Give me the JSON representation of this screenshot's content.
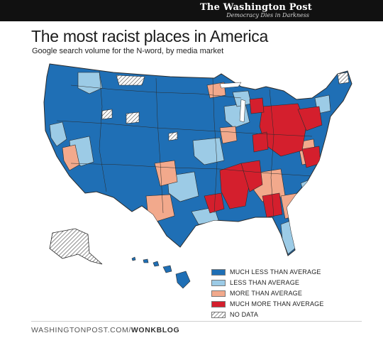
{
  "header": {
    "masthead": "The Washington Post",
    "tagline": "Democracy Dies in Darkness"
  },
  "title": "The most racist places in America",
  "subtitle": "Google search volume for the N-word, by media market",
  "colors": {
    "much_less": "#1f6fb5",
    "less": "#9ccbe6",
    "more": "#f2a98c",
    "much_more": "#d41f2d",
    "no_data": "#ffffff",
    "boundary": "#2b2b2b"
  },
  "legend": {
    "items": [
      {
        "key": "much_less",
        "label": "MUCH LESS THAN AVERAGE"
      },
      {
        "key": "less",
        "label": "LESS THAN AVERAGE"
      },
      {
        "key": "more",
        "label": "MORE THAN AVERAGE"
      },
      {
        "key": "much_more",
        "label": "MUCH MORE THAN AVERAGE"
      },
      {
        "key": "no_data",
        "label": "NO DATA"
      }
    ]
  },
  "footer": {
    "site": "WASHINGTONPOST.COM/",
    "section": "WONKBLOG"
  }
}
